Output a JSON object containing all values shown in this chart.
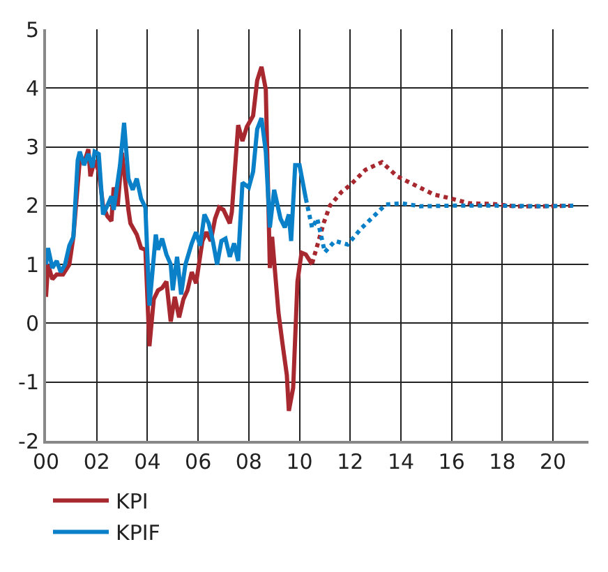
{
  "chart_data": {
    "type": "line",
    "series": [
      {
        "name": "KPI",
        "color": "#a8282f",
        "line_style": "solid",
        "x": [
          2000.0,
          2000.08,
          2000.25,
          2000.42,
          2000.67,
          2000.92,
          2001.08,
          2001.33,
          2001.5,
          2001.67,
          2001.75,
          2001.92,
          2002.08,
          2002.25,
          2002.42,
          2002.58,
          2002.67,
          2002.83,
          2003.0,
          2003.25,
          2003.33,
          2003.58,
          2003.75,
          2003.92,
          2004.08,
          2004.25,
          2004.42,
          2004.58,
          2004.75,
          2004.92,
          2005.08,
          2005.25,
          2005.42,
          2005.58,
          2005.75,
          2005.92,
          2006.17,
          2006.33,
          2006.5,
          2006.67,
          2006.83,
          2007.0,
          2007.25,
          2007.33,
          2007.58,
          2007.75,
          2007.92,
          2008.17,
          2008.33,
          2008.5,
          2008.67,
          2008.83,
          2008.92,
          2009.17,
          2009.33,
          2009.5,
          2009.58,
          2009.75,
          2009.92,
          2010.08,
          2010.25,
          2010.5
        ],
        "values": [
          0.45,
          1.0,
          0.75,
          0.83,
          0.83,
          1.0,
          1.47,
          2.77,
          2.73,
          2.96,
          2.5,
          2.77,
          2.58,
          2.0,
          1.82,
          1.74,
          2.31,
          2.0,
          2.9,
          1.93,
          1.7,
          1.51,
          1.28,
          1.25,
          -0.39,
          0.41,
          0.56,
          0.6,
          0.71,
          0.03,
          0.45,
          0.1,
          0.41,
          0.56,
          0.87,
          0.68,
          1.4,
          1.55,
          1.4,
          1.78,
          1.97,
          1.93,
          1.7,
          1.89,
          3.37,
          3.1,
          3.34,
          3.53,
          4.13,
          4.36,
          3.98,
          0.94,
          1.47,
          0.18,
          -0.35,
          -0.88,
          -1.49,
          -1.1,
          0.71,
          1.2,
          1.17,
          1.0
        ]
      },
      {
        "name": "KPIF",
        "color": "#0a80c8",
        "line_style": "solid",
        "x": [
          2000.0,
          2000.08,
          2000.25,
          2000.42,
          2000.58,
          2000.75,
          2000.92,
          2001.08,
          2001.25,
          2001.33,
          2001.5,
          2001.67,
          2001.83,
          2001.92,
          2002.08,
          2002.25,
          2002.42,
          2002.58,
          2002.67,
          2002.92,
          2003.08,
          2003.25,
          2003.42,
          2003.58,
          2003.75,
          2003.92,
          2004.08,
          2004.33,
          2004.42,
          2004.58,
          2004.75,
          2004.92,
          2005.0,
          2005.17,
          2005.33,
          2005.5,
          2005.75,
          2005.92,
          2006.08,
          2006.25,
          2006.42,
          2006.58,
          2006.75,
          2006.92,
          2007.08,
          2007.25,
          2007.42,
          2007.58,
          2007.75,
          2008.0,
          2008.17,
          2008.33,
          2008.5,
          2008.67,
          2008.83,
          2009.0,
          2009.25,
          2009.42,
          2009.58,
          2009.67,
          2009.83,
          2010.0,
          2010.25
        ],
        "values": [
          1.0,
          1.28,
          0.94,
          1.06,
          0.87,
          1.0,
          1.32,
          1.47,
          2.77,
          2.92,
          2.69,
          2.88,
          2.65,
          2.92,
          2.88,
          1.85,
          2.0,
          2.16,
          1.93,
          2.69,
          3.41,
          2.46,
          2.27,
          2.46,
          2.12,
          1.97,
          0.3,
          1.51,
          1.25,
          1.44,
          1.17,
          1.0,
          0.56,
          1.13,
          0.49,
          1.0,
          1.36,
          1.55,
          1.32,
          1.85,
          1.7,
          1.4,
          1.0,
          1.4,
          1.44,
          1.13,
          1.36,
          1.06,
          2.39,
          2.31,
          2.58,
          3.3,
          3.49,
          2.92,
          1.63,
          2.27,
          1.78,
          1.63,
          1.85,
          1.4,
          2.69,
          2.69,
          2.12
        ]
      },
      {
        "color": "#a8282f",
        "line_style": "dotted",
        "x": [
          2010.5,
          2010.7,
          2010.95,
          2011.2,
          2011.65,
          2012.0,
          2012.6,
          2013.25,
          2013.85,
          2014.55,
          2015.3,
          2016.0,
          2016.7,
          2017.6,
          2018.5,
          2019.55,
          2020.8
        ],
        "values": [
          1.02,
          1.32,
          1.7,
          2.0,
          2.23,
          2.35,
          2.61,
          2.74,
          2.5,
          2.35,
          2.19,
          2.12,
          2.04,
          2.03,
          1.99,
          1.99,
          2.0
        ]
      },
      {
        "color": "#0a80c8",
        "line_style": "dotted",
        "x": [
          2010.25,
          2010.5,
          2010.7,
          2011.0,
          2011.4,
          2011.9,
          2012.45,
          2013.0,
          2013.4,
          2014.05,
          2014.75,
          2016.0,
          2017.75,
          2019.55,
          2020.8
        ],
        "values": [
          2.12,
          1.62,
          1.78,
          1.21,
          1.4,
          1.34,
          1.62,
          1.85,
          2.02,
          2.04,
          1.99,
          2.0,
          2.0,
          1.99,
          2.0
        ]
      }
    ],
    "xlim": [
      2000,
      2021.4
    ],
    "xticks": [
      {
        "value": 2000,
        "label": "00"
      },
      {
        "value": 2002,
        "label": "02"
      },
      {
        "value": 2004,
        "label": "04"
      },
      {
        "value": 2006,
        "label": "06"
      },
      {
        "value": 2008,
        "label": "08"
      },
      {
        "value": 2010,
        "label": "10"
      },
      {
        "value": 2012,
        "label": "12"
      },
      {
        "value": 2014,
        "label": "14"
      },
      {
        "value": 2016,
        "label": "16"
      },
      {
        "value": 2018,
        "label": "18"
      },
      {
        "value": 2020,
        "label": "20"
      }
    ],
    "ylim": [
      -2,
      5
    ],
    "yticks": [
      -2,
      -1,
      0,
      1,
      2,
      3,
      4,
      5
    ],
    "grid": true,
    "legend": "bottom left",
    "marker": "none"
  }
}
